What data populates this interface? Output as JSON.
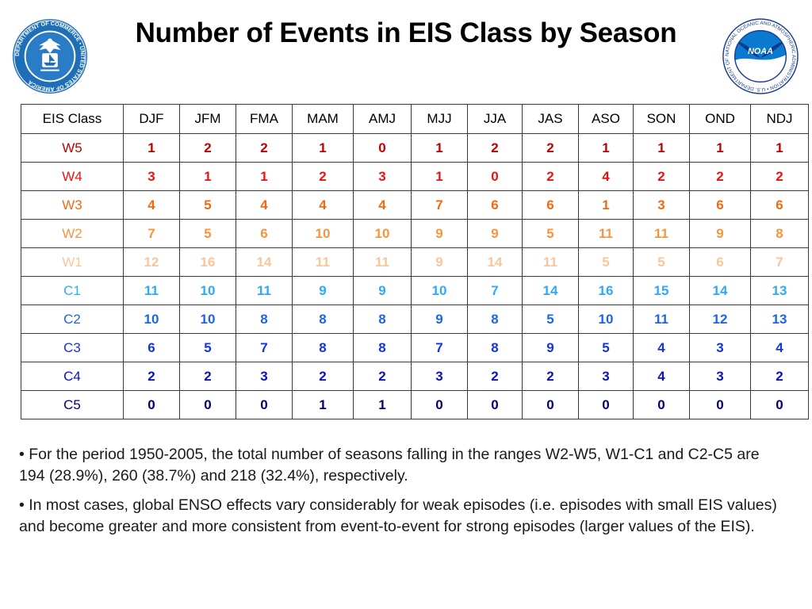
{
  "title": "Number of Events in EIS Class by Season",
  "logos": {
    "left": {
      "name": "Department of Commerce seal",
      "ring_text": "DEPARTMENT OF COMMERCE • UNITED STATES OF AMERICA"
    },
    "right": {
      "name": "NOAA logo",
      "ring_text": "NATIONAL OCEANIC AND ATMOSPHERIC ADMINISTRATION • U.S. DEPARTMENT OF COMMERCE",
      "center_text": "NOAA"
    }
  },
  "table": {
    "headers": [
      "EIS Class",
      "DJF",
      "JFM",
      "FMA",
      "MAM",
      "AMJ",
      "MJJ",
      "JJA",
      "JAS",
      "ASO",
      "SON",
      "OND",
      "NDJ"
    ],
    "rows": [
      {
        "class": "W5",
        "color": "#c00000",
        "values": [
          "1",
          "2",
          "2",
          "1",
          "0",
          "1",
          "2",
          "2",
          "1",
          "1",
          "1",
          "1"
        ]
      },
      {
        "class": "W4",
        "color": "#ee1111",
        "values": [
          "3",
          "1",
          "1",
          "2",
          "3",
          "1",
          "0",
          "2",
          "4",
          "2",
          "2",
          "2"
        ]
      },
      {
        "class": "W3",
        "color": "#f26a10",
        "values": [
          "4",
          "5",
          "4",
          "4",
          "4",
          "7",
          "6",
          "6",
          "1",
          "3",
          "6",
          "6"
        ]
      },
      {
        "class": "W2",
        "color": "#f4963e",
        "values": [
          "7",
          "5",
          "6",
          "10",
          "10",
          "9",
          "9",
          "5",
          "11",
          "11",
          "9",
          "8"
        ]
      },
      {
        "class": "W1",
        "color": "#f7c79a",
        "values": [
          "12",
          "16",
          "14",
          "11",
          "11",
          "9",
          "14",
          "11",
          "5",
          "5",
          "6",
          "7"
        ]
      },
      {
        "class": "C1",
        "color": "#2eaaf2",
        "values": [
          "11",
          "10",
          "11",
          "9",
          "9",
          "10",
          "7",
          "14",
          "16",
          "15",
          "14",
          "13"
        ]
      },
      {
        "class": "C2",
        "color": "#1d64e8",
        "values": [
          "10",
          "10",
          "8",
          "8",
          "8",
          "9",
          "8",
          "5",
          "10",
          "11",
          "12",
          "13"
        ]
      },
      {
        "class": "C3",
        "color": "#1535d8",
        "values": [
          "6",
          "5",
          "7",
          "8",
          "8",
          "7",
          "8",
          "9",
          "5",
          "4",
          "3",
          "4"
        ]
      },
      {
        "class": "C4",
        "color": "#0c12b8",
        "values": [
          "2",
          "2",
          "3",
          "2",
          "2",
          "3",
          "2",
          "2",
          "3",
          "4",
          "3",
          "2"
        ]
      },
      {
        "class": "C5",
        "color": "#02026e",
        "values": [
          "0",
          "0",
          "0",
          "1",
          "1",
          "0",
          "0",
          "0",
          "0",
          "0",
          "0",
          "0"
        ]
      }
    ]
  },
  "notes": [
    "• For the period 1950-2005, the total number of seasons falling in the ranges W2-W5, W1-C1 and C2-C5 are 194 (28.9%), 260 (38.7%) and 218 (32.4%), respectively.",
    "• In most cases, global ENSO effects vary considerably for weak episodes (i.e. episodes with small EIS values) and become greater and more consistent from event-to-event for strong episodes (larger values of the EIS)."
  ]
}
